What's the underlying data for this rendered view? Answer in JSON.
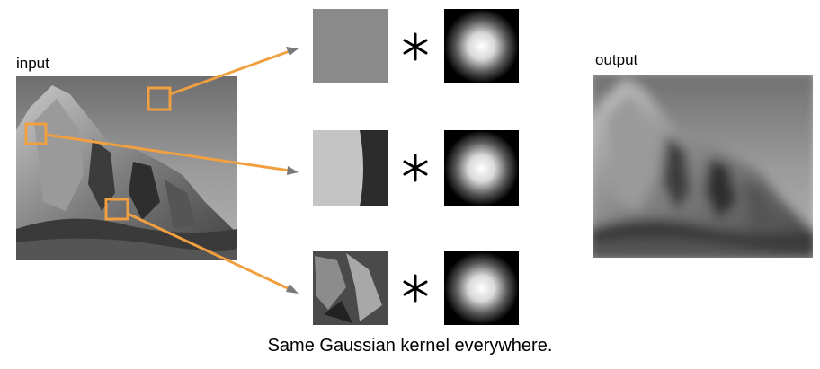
{
  "input_label": "input",
  "output_label": "output",
  "caption": "Same Gaussian kernel everywhere."
}
